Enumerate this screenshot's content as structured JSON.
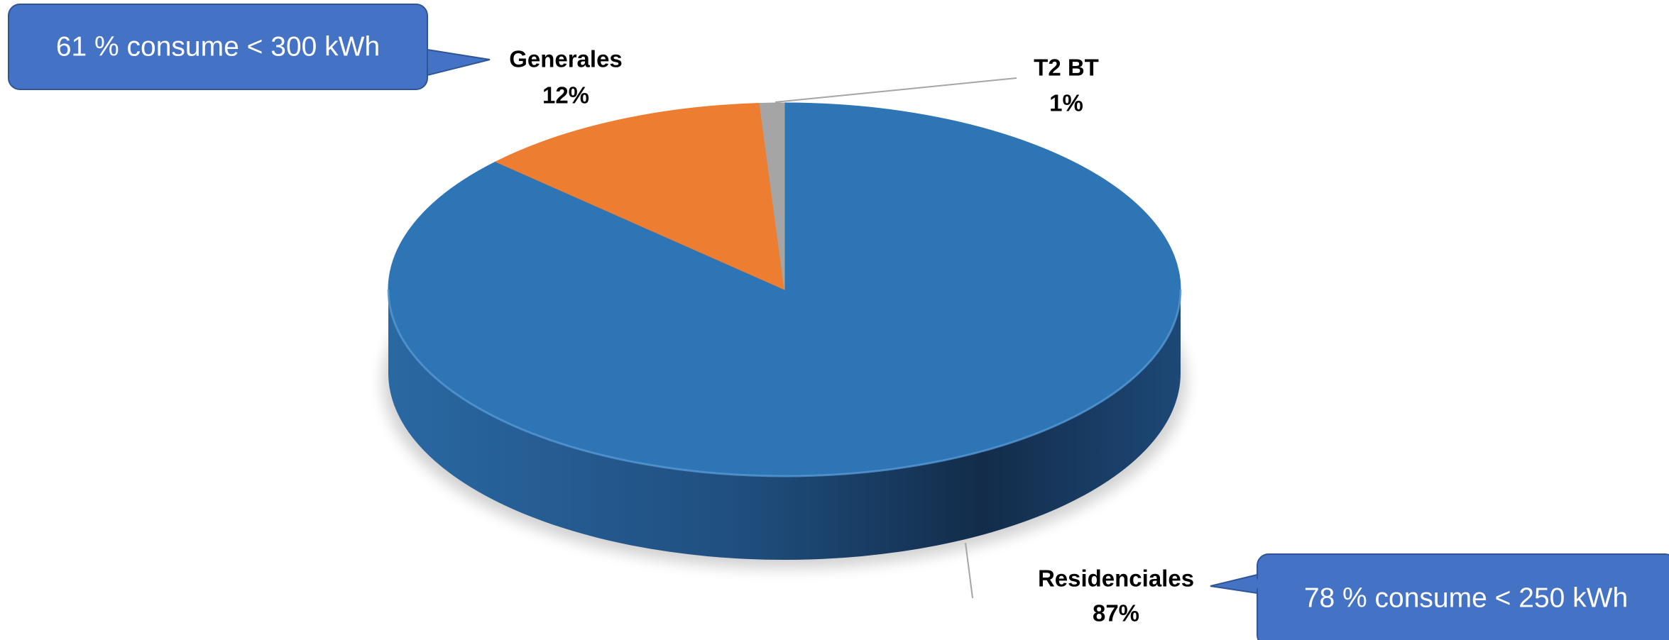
{
  "chart_data": {
    "type": "pie",
    "style": "3d",
    "categories": [
      "Residenciales",
      "Generales",
      "T2 BT"
    ],
    "values": [
      87,
      12,
      1
    ],
    "value_labels": [
      "87%",
      "12%",
      "1%"
    ],
    "colors": [
      "#2e75b6",
      "#ed7d31",
      "#a5a5a5"
    ],
    "annotations": [
      "61 % consume < 300 kWh",
      "78 % consume < 250 kWh"
    ]
  }
}
